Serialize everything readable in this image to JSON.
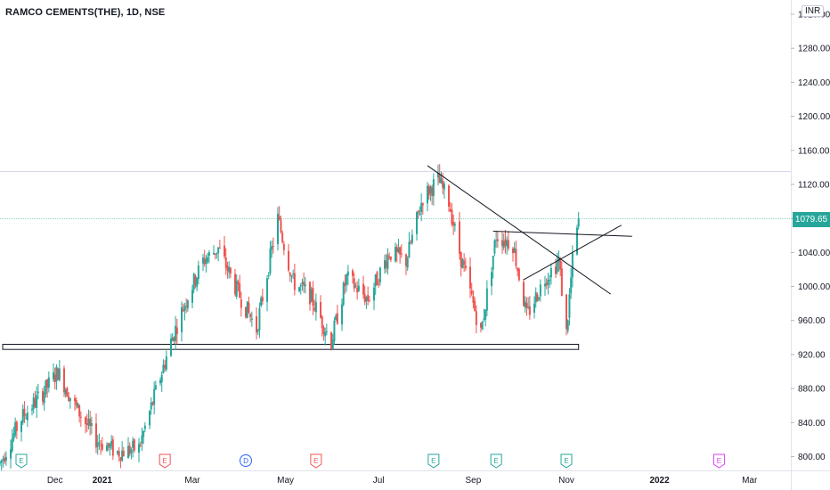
{
  "header": {
    "title": "RAMCO CEMENTS(THE), 1D, NSE",
    "currency": "INR",
    "last_price": "1079.65"
  },
  "colors": {
    "up": "#26a69a",
    "down": "#ef5350",
    "last_price_line": "#26a69a",
    "resistance_line": "#9fa8da",
    "drawing": "#131722"
  },
  "chart_data": {
    "type": "candlestick",
    "symbol": "RAMCO CEMENTS(THE)",
    "interval": "1D",
    "exchange": "NSE",
    "currency": "INR",
    "y_axis": {
      "range": [
        790,
        1330
      ],
      "ticks": [
        800,
        840,
        880,
        920,
        960,
        1000,
        1040,
        1080,
        1120,
        1160,
        1200,
        1240,
        1280,
        1320
      ],
      "tick_labels": [
        "800.00",
        "840.00",
        "880.00",
        "920.00",
        "960.00",
        "1000.00",
        "1040.00",
        "1080.00",
        "1120.00",
        "1160.00",
        "1200.00",
        "1240.00",
        "1280.00",
        "1320.00"
      ]
    },
    "x_axis": {
      "range": [
        "2020-10-26",
        "2022-03-28"
      ],
      "labels": [
        {
          "text": "Dec",
          "date": "2020-12-01",
          "bold": false
        },
        {
          "text": "2021",
          "date": "2021-01-01",
          "bold": true
        },
        {
          "text": "Mar",
          "date": "2021-03-01",
          "bold": false
        },
        {
          "text": "May",
          "date": "2021-05-01",
          "bold": false
        },
        {
          "text": "Jul",
          "date": "2021-07-01",
          "bold": false
        },
        {
          "text": "Sep",
          "date": "2021-09-01",
          "bold": false
        },
        {
          "text": "Nov",
          "date": "2021-11-01",
          "bold": false
        },
        {
          "text": "2022",
          "date": "2022-01-01",
          "bold": true
        },
        {
          "text": "Mar",
          "date": "2022-03-01",
          "bold": false
        }
      ]
    },
    "last_price": 1079.65,
    "horizontal_level": 1135,
    "price_path": [
      [
        "2020-10-26",
        792
      ],
      [
        "2020-11-09",
        845
      ],
      [
        "2020-11-23",
        875
      ],
      [
        "2020-12-03",
        900
      ],
      [
        "2020-12-14",
        860
      ],
      [
        "2020-12-28",
        820
      ],
      [
        "2021-01-11",
        805
      ],
      [
        "2021-01-25",
        810
      ],
      [
        "2021-02-04",
        870
      ],
      [
        "2021-02-15",
        935
      ],
      [
        "2021-02-25",
        985
      ],
      [
        "2021-03-08",
        1030
      ],
      [
        "2021-03-18",
        1045
      ],
      [
        "2021-03-29",
        1000
      ],
      [
        "2021-04-12",
        950
      ],
      [
        "2021-04-26",
        1080
      ],
      [
        "2021-05-06",
        1005
      ],
      [
        "2021-05-17",
        990
      ],
      [
        "2021-05-31",
        935
      ],
      [
        "2021-06-10",
        1010
      ],
      [
        "2021-06-24",
        985
      ],
      [
        "2021-07-08",
        1040
      ],
      [
        "2021-07-19",
        1030
      ],
      [
        "2021-07-30",
        1105
      ],
      [
        "2021-08-09",
        1125
      ],
      [
        "2021-08-16",
        1100
      ],
      [
        "2021-08-23",
        1040
      ],
      [
        "2021-09-06",
        945
      ],
      [
        "2021-09-16",
        1060
      ],
      [
        "2021-09-27",
        1050
      ],
      [
        "2021-10-06",
        965
      ],
      [
        "2021-10-18",
        1010
      ],
      [
        "2021-10-27",
        1030
      ],
      [
        "2021-11-01",
        945
      ],
      [
        "2021-11-05",
        1030
      ],
      [
        "2021-11-09",
        1078
      ]
    ],
    "trendlines": [
      {
        "name": "descending-resistance",
        "from": [
          "2021-08-02",
          1142
        ],
        "to": [
          "2021-11-30",
          991
        ]
      },
      {
        "name": "neckline",
        "from": [
          "2021-09-14",
          1065
        ],
        "to": [
          "2021-12-14",
          1059
        ]
      },
      {
        "name": "rising-support",
        "from": [
          "2021-10-04",
          1008
        ],
        "to": [
          "2021-12-07",
          1072
        ]
      }
    ],
    "support_zone": {
      "from": "2020-10-26",
      "to": "2021-11-09",
      "low": 926,
      "high": 932
    },
    "events": [
      {
        "date": "2020-11-09",
        "letter": "E",
        "color": "#26a69a"
      },
      {
        "date": "2021-02-11",
        "letter": "E",
        "color": "#ef5350"
      },
      {
        "date": "2021-04-05",
        "letter": "D",
        "color": "#2962ff"
      },
      {
        "date": "2021-05-21",
        "letter": "E",
        "color": "#ef5350"
      },
      {
        "date": "2021-08-06",
        "letter": "E",
        "color": "#26a69a"
      },
      {
        "date": "2021-09-16",
        "letter": "E",
        "color": "#26a69a"
      },
      {
        "date": "2021-11-01",
        "letter": "E",
        "color": "#26a69a"
      },
      {
        "date": "2022-02-09",
        "letter": "E",
        "color": "#e040fb"
      }
    ]
  }
}
